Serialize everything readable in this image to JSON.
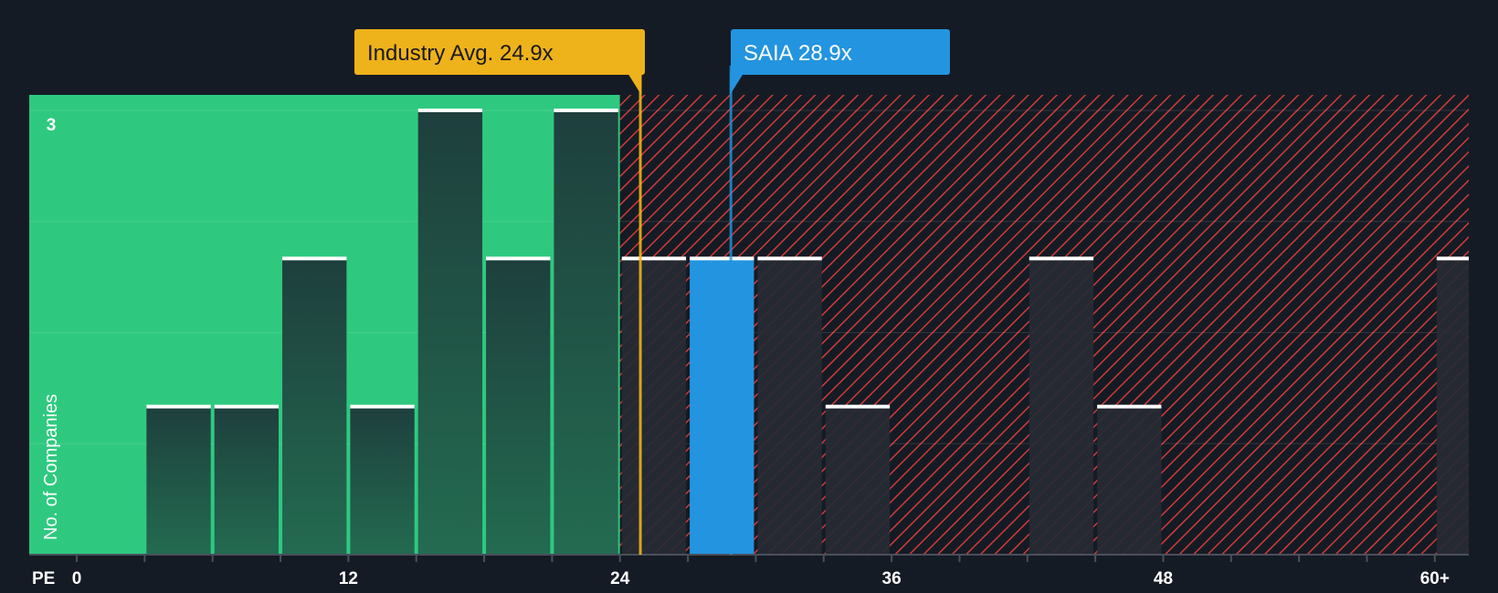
{
  "chart_data": {
    "type": "bar",
    "title": "",
    "xlabel": "PE",
    "ylabel": "No. of Companies",
    "x_tick_labels": [
      "0",
      "12",
      "24",
      "36",
      "48",
      "60+"
    ],
    "x_tick_values": [
      0,
      12,
      24,
      36,
      48,
      60
    ],
    "y_tick_labels": [
      "3"
    ],
    "xlim": [
      -2.1,
      61.5
    ],
    "ylim": [
      0,
      3.1
    ],
    "bin_width": 3,
    "bins": [
      {
        "start": 3,
        "count": 1
      },
      {
        "start": 6,
        "count": 1
      },
      {
        "start": 9,
        "count": 2
      },
      {
        "start": 12,
        "count": 1
      },
      {
        "start": 15,
        "count": 3
      },
      {
        "start": 18,
        "count": 2
      },
      {
        "start": 21,
        "count": 3
      },
      {
        "start": 24,
        "count": 2
      },
      {
        "start": 27,
        "count": 2,
        "highlight": true
      },
      {
        "start": 30,
        "count": 2
      },
      {
        "start": 33,
        "count": 1
      },
      {
        "start": 42,
        "count": 2
      },
      {
        "start": 45,
        "count": 1
      },
      {
        "start": 60,
        "count": 2
      }
    ],
    "good_region": {
      "from": -2.1,
      "to": 24
    },
    "bad_region": {
      "from": 24,
      "to": 61.5
    },
    "annotations": [
      {
        "label": "Industry Avg. 24.9x",
        "value": 24.9,
        "color": "#eeb21a",
        "text_color": "#1a1a1a"
      },
      {
        "label": "SAIA 28.9x",
        "value": 28.9,
        "color": "#2394e0",
        "text_color": "#ffffff"
      }
    ],
    "colors": {
      "background": "#151b24",
      "good_region": "#2ec97f",
      "bad_hatch": "#d23a3a",
      "bar_good_top": "#1e3f3d",
      "bar_good_bottom": "#236b50",
      "bar_bad": "#262a34",
      "bar_highlight": "#2394e0",
      "bar_cap": "#ffffff"
    }
  }
}
